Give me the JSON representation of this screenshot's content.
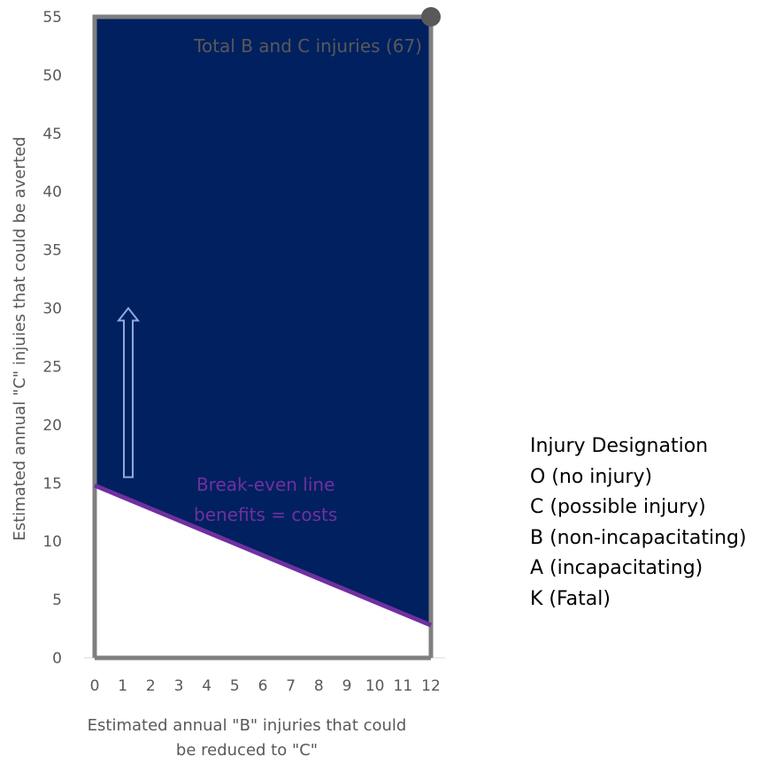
{
  "chart_data": {
    "type": "area",
    "title": "",
    "xlabel_lines": [
      "Estimated annual \"B\" injuries that could",
      "be reduced to \"C\""
    ],
    "ylabel": "Estimated annual \"C\" injuies that could be averted",
    "xlim": [
      0,
      12
    ],
    "ylim": [
      0,
      55
    ],
    "x_ticks": [
      "0",
      "1",
      "2",
      "3",
      "4",
      "5",
      "6",
      "7",
      "8",
      "9",
      "10",
      "11",
      "12"
    ],
    "y_ticks": [
      "0",
      "5",
      "10",
      "15",
      "20",
      "25",
      "30",
      "35",
      "40",
      "45",
      "50",
      "55"
    ],
    "region": {
      "name": "Total B and C injuries (67)",
      "x": [
        0,
        12
      ],
      "y_top": 55,
      "color": "#002060"
    },
    "break_even_line": {
      "name_lines": [
        "Break-even line",
        "benefits = costs"
      ],
      "x": [
        0,
        12
      ],
      "y": [
        14.8,
        2.8
      ],
      "color": "#7030a0"
    },
    "point": {
      "x": 12,
      "y": 55,
      "color": "#595959"
    },
    "arrow": {
      "x": 1.2,
      "y_from": 15.5,
      "y_to": 30,
      "color": "#8eaadb"
    },
    "grid": false
  },
  "legend": {
    "title": "Injury Designation",
    "items": [
      "O (no injury)",
      "C (possible injury)",
      "B (non-incapacitating)",
      "A (incapacitating)",
      "K (Fatal)"
    ]
  }
}
